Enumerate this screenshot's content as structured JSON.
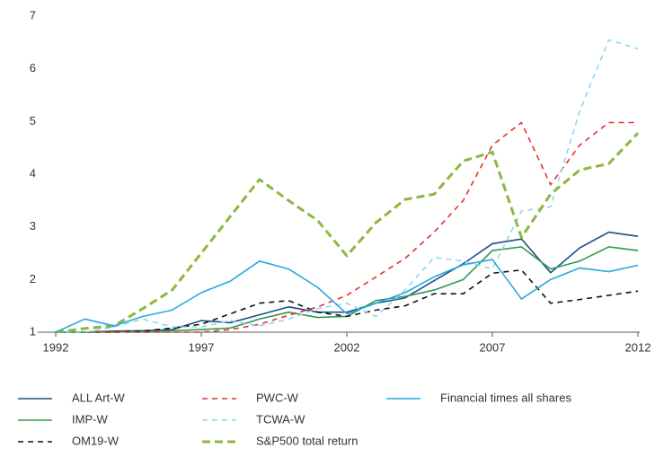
{
  "chart_data": {
    "type": "line",
    "x": [
      1992,
      1993,
      1994,
      1995,
      1996,
      1997,
      1998,
      1999,
      2000,
      2001,
      2002,
      2003,
      2004,
      2005,
      2006,
      2007,
      2008,
      2009,
      2010,
      2011,
      2012
    ],
    "xlim": [
      1992,
      2012
    ],
    "xticks": [
      1992,
      1997,
      2002,
      2007,
      2012
    ],
    "ylim": [
      1,
      7
    ],
    "yticks": [
      1,
      2,
      3,
      4,
      5,
      6,
      7
    ],
    "grid": false,
    "series": [
      {
        "name": "ALL Art-W",
        "color": "#1d4f86",
        "dashed": false,
        "values": [
          1.0,
          1.0,
          1.02,
          1.03,
          1.05,
          1.22,
          1.18,
          1.33,
          1.48,
          1.38,
          1.38,
          1.55,
          1.65,
          1.98,
          2.3,
          2.68,
          2.77,
          2.13,
          2.6,
          2.9,
          2.82
        ]
      },
      {
        "name": "IMP-W",
        "color": "#2e9a4e",
        "dashed": false,
        "values": [
          1.0,
          1.0,
          1.0,
          1.02,
          1.03,
          1.05,
          1.08,
          1.25,
          1.38,
          1.28,
          1.3,
          1.6,
          1.68,
          1.8,
          2.0,
          2.55,
          2.62,
          2.2,
          2.35,
          2.62,
          2.55
        ]
      },
      {
        "name": "OM19-W",
        "color": "#111111",
        "dashed": true,
        "values": [
          1.0,
          1.0,
          1.0,
          1.02,
          1.08,
          1.15,
          1.35,
          1.55,
          1.6,
          1.38,
          1.3,
          1.42,
          1.5,
          1.73,
          1.73,
          2.12,
          2.18,
          1.55,
          1.62,
          1.7,
          1.78
        ]
      },
      {
        "name": "PWC-W",
        "color": "#e5332a",
        "dashed": true,
        "values": [
          1.0,
          1.0,
          1.0,
          1.0,
          1.0,
          1.0,
          1.05,
          1.15,
          1.32,
          1.48,
          1.7,
          2.05,
          2.4,
          2.9,
          3.5,
          4.55,
          4.98,
          3.8,
          4.55,
          4.98,
          4.98
        ]
      },
      {
        "name": "TCWA-W",
        "color": "#8fd6f0",
        "dashed": true,
        "values": [
          1.0,
          1.0,
          1.1,
          1.25,
          1.1,
          1.1,
          1.22,
          1.12,
          1.25,
          1.45,
          1.55,
          1.3,
          1.8,
          2.42,
          2.35,
          2.2,
          3.3,
          3.38,
          5.2,
          6.55,
          6.38
        ]
      },
      {
        "name": "S&P500 total return",
        "color": "#8bb83f",
        "dashed": true,
        "thick": true,
        "values": [
          1.0,
          1.07,
          1.12,
          1.45,
          1.8,
          2.5,
          3.2,
          3.9,
          3.5,
          3.12,
          2.45,
          3.08,
          3.52,
          3.62,
          4.25,
          4.42,
          2.8,
          3.62,
          4.08,
          4.2,
          4.78
        ]
      },
      {
        "name": "Financial times all shares",
        "color": "#2aa8df",
        "dashed": false,
        "values": [
          1.0,
          1.25,
          1.12,
          1.3,
          1.42,
          1.75,
          1.97,
          2.35,
          2.2,
          1.85,
          1.35,
          1.55,
          1.75,
          2.05,
          2.28,
          2.38,
          1.63,
          2.0,
          2.22,
          2.15,
          2.27
        ]
      }
    ]
  }
}
